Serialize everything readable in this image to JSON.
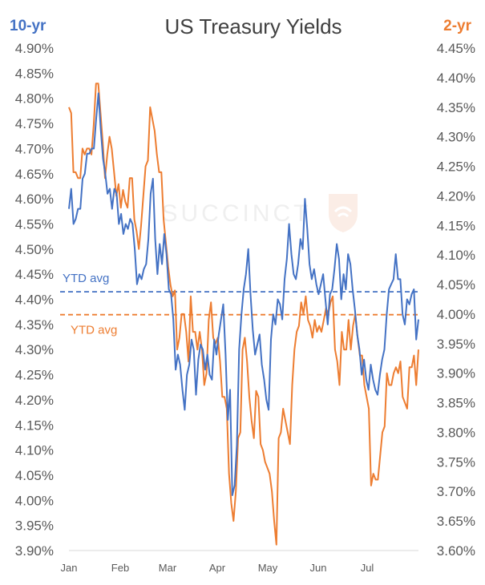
{
  "chart_data": {
    "type": "line",
    "title": "US Treasury Yields",
    "left_axis_label": "10-yr",
    "right_axis_label": "2-yr",
    "left_ylim": [
      3.9,
      4.9
    ],
    "right_ylim": [
      3.6,
      4.45
    ],
    "left_ticks": [
      "4.90%",
      "4.85%",
      "4.80%",
      "4.75%",
      "4.70%",
      "4.65%",
      "4.60%",
      "4.55%",
      "4.50%",
      "4.45%",
      "4.40%",
      "4.35%",
      "4.30%",
      "4.25%",
      "4.20%",
      "4.15%",
      "4.10%",
      "4.05%",
      "4.00%",
      "3.95%",
      "3.90%"
    ],
    "right_ticks": [
      "4.45%",
      "4.40%",
      "4.35%",
      "4.30%",
      "4.25%",
      "4.20%",
      "4.15%",
      "4.10%",
      "4.05%",
      "4.00%",
      "3.95%",
      "3.90%",
      "3.85%",
      "3.80%",
      "3.75%",
      "3.70%",
      "3.65%",
      "3.60%"
    ],
    "months": [
      "Jan",
      "Feb",
      "Mar",
      "Apr",
      "May",
      "Jun",
      "Jul"
    ],
    "watermark": "SUCCINCT",
    "colors": {
      "ten_year": "#4472c4",
      "two_year": "#ed7d31",
      "title": "#404040",
      "ticks": "#595959"
    },
    "series": [
      {
        "name": "10-yr",
        "axis": "left",
        "avg_label": "YTD avg",
        "avg": 4.415,
        "values": [
          4.58,
          4.62,
          4.55,
          4.56,
          4.58,
          4.58,
          4.64,
          4.65,
          4.69,
          4.69,
          4.7,
          4.7,
          4.76,
          4.81,
          4.74,
          4.68,
          4.65,
          4.61,
          4.62,
          4.58,
          4.62,
          4.61,
          4.55,
          4.57,
          4.53,
          4.55,
          4.54,
          4.56,
          4.55,
          4.5,
          4.43,
          4.45,
          4.44,
          4.46,
          4.47,
          4.52,
          4.61,
          4.64,
          4.52,
          4.45,
          4.51,
          4.47,
          4.53,
          4.49,
          4.42,
          4.41,
          4.36,
          4.26,
          4.29,
          4.27,
          4.22,
          4.18,
          4.25,
          4.27,
          4.32,
          4.3,
          4.21,
          4.28,
          4.31,
          4.3,
          4.26,
          4.29,
          4.25,
          4.24,
          4.32,
          4.29,
          4.33,
          4.36,
          4.39,
          4.29,
          4.16,
          4.22,
          4.01,
          4.03,
          4.11,
          4.3,
          4.37,
          4.42,
          4.45,
          4.5,
          4.41,
          4.34,
          4.29,
          4.31,
          4.33,
          4.27,
          4.24,
          4.2,
          4.18,
          4.32,
          4.37,
          4.35,
          4.4,
          4.39,
          4.36,
          4.44,
          4.48,
          4.55,
          4.49,
          4.45,
          4.44,
          4.47,
          4.52,
          4.5,
          4.6,
          4.54,
          4.47,
          4.44,
          4.46,
          4.43,
          4.41,
          4.43,
          4.45,
          4.4,
          4.35,
          4.41,
          4.42,
          4.46,
          4.51,
          4.48,
          4.4,
          4.45,
          4.42,
          4.49,
          4.47,
          4.42,
          4.38,
          4.33,
          4.3,
          4.25,
          4.28,
          4.24,
          4.22,
          4.27,
          4.24,
          4.22,
          4.21,
          4.25,
          4.28,
          4.3,
          4.37,
          4.42,
          4.43,
          4.44,
          4.49,
          4.44,
          4.44,
          4.37,
          4.35,
          4.4,
          4.39,
          4.41,
          4.42,
          4.32,
          4.36
        ]
      },
      {
        "name": "2-yr",
        "axis": "right",
        "avg_label": "YTD avg",
        "avg": 3.999,
        "values": [
          4.35,
          4.34,
          4.24,
          4.24,
          4.23,
          4.23,
          4.28,
          4.27,
          4.28,
          4.28,
          4.27,
          4.32,
          4.39,
          4.39,
          4.34,
          4.29,
          4.23,
          4.27,
          4.3,
          4.28,
          4.24,
          4.2,
          4.22,
          4.18,
          4.21,
          4.19,
          4.18,
          4.23,
          4.23,
          4.16,
          4.14,
          4.11,
          4.15,
          4.2,
          4.25,
          4.26,
          4.35,
          4.33,
          4.31,
          4.27,
          4.24,
          4.24,
          4.16,
          4.12,
          4.08,
          4.05,
          4.03,
          4.04,
          3.94,
          3.96,
          4.0,
          4.0,
          3.97,
          3.92,
          4.03,
          3.97,
          3.97,
          3.94,
          3.97,
          3.94,
          3.88,
          3.9,
          3.99,
          4.02,
          3.96,
          3.95,
          3.96,
          3.92,
          3.86,
          3.86,
          3.84,
          3.73,
          3.68,
          3.65,
          3.7,
          3.79,
          3.8,
          3.94,
          3.96,
          3.92,
          3.86,
          3.82,
          3.79,
          3.87,
          3.86,
          3.78,
          3.77,
          3.75,
          3.74,
          3.73,
          3.7,
          3.65,
          3.61,
          3.79,
          3.8,
          3.84,
          3.82,
          3.8,
          3.78,
          3.88,
          3.94,
          3.97,
          3.98,
          4.02,
          4.0,
          4.03,
          3.99,
          3.98,
          3.96,
          3.99,
          3.97,
          3.98,
          3.97,
          3.99,
          4.01,
          4.0,
          4.02,
          4.03,
          3.94,
          3.92,
          3.88,
          3.97,
          3.94,
          3.94,
          3.99,
          3.94,
          3.98,
          4.0,
          3.96,
          3.93,
          3.93,
          3.88,
          3.86,
          3.84,
          3.71,
          3.73,
          3.72,
          3.72,
          3.76,
          3.8,
          3.81,
          3.9,
          3.88,
          3.88,
          3.9,
          3.91,
          3.9,
          3.92,
          3.86,
          3.85,
          3.84,
          3.91,
          3.91,
          3.93,
          3.88,
          3.94
        ]
      }
    ]
  }
}
